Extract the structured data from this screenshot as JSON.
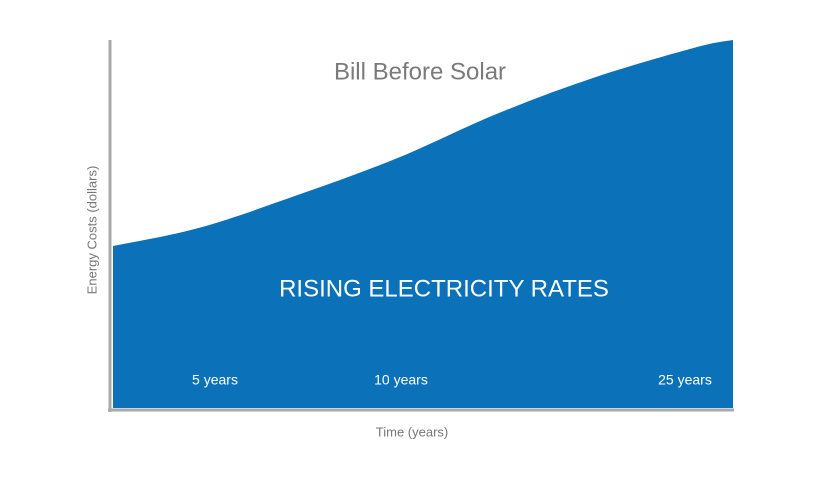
{
  "chart_data": {
    "type": "area",
    "annotation": "Bill Before Solar",
    "area_label": "RISING ELECTRICITY RATES",
    "time_labels": [
      "5 years",
      "10 years",
      "25 years"
    ],
    "xlabel": "Time (years)",
    "ylabel": "Energy Costs (dollars)",
    "x": [
      0,
      14,
      30,
      46,
      62,
      78,
      94,
      100
    ],
    "values": [
      44,
      49,
      58,
      68,
      80,
      90,
      98,
      100
    ],
    "color": "#0b72b9",
    "xlim": [
      0,
      100
    ],
    "ylim": [
      0,
      100
    ]
  }
}
